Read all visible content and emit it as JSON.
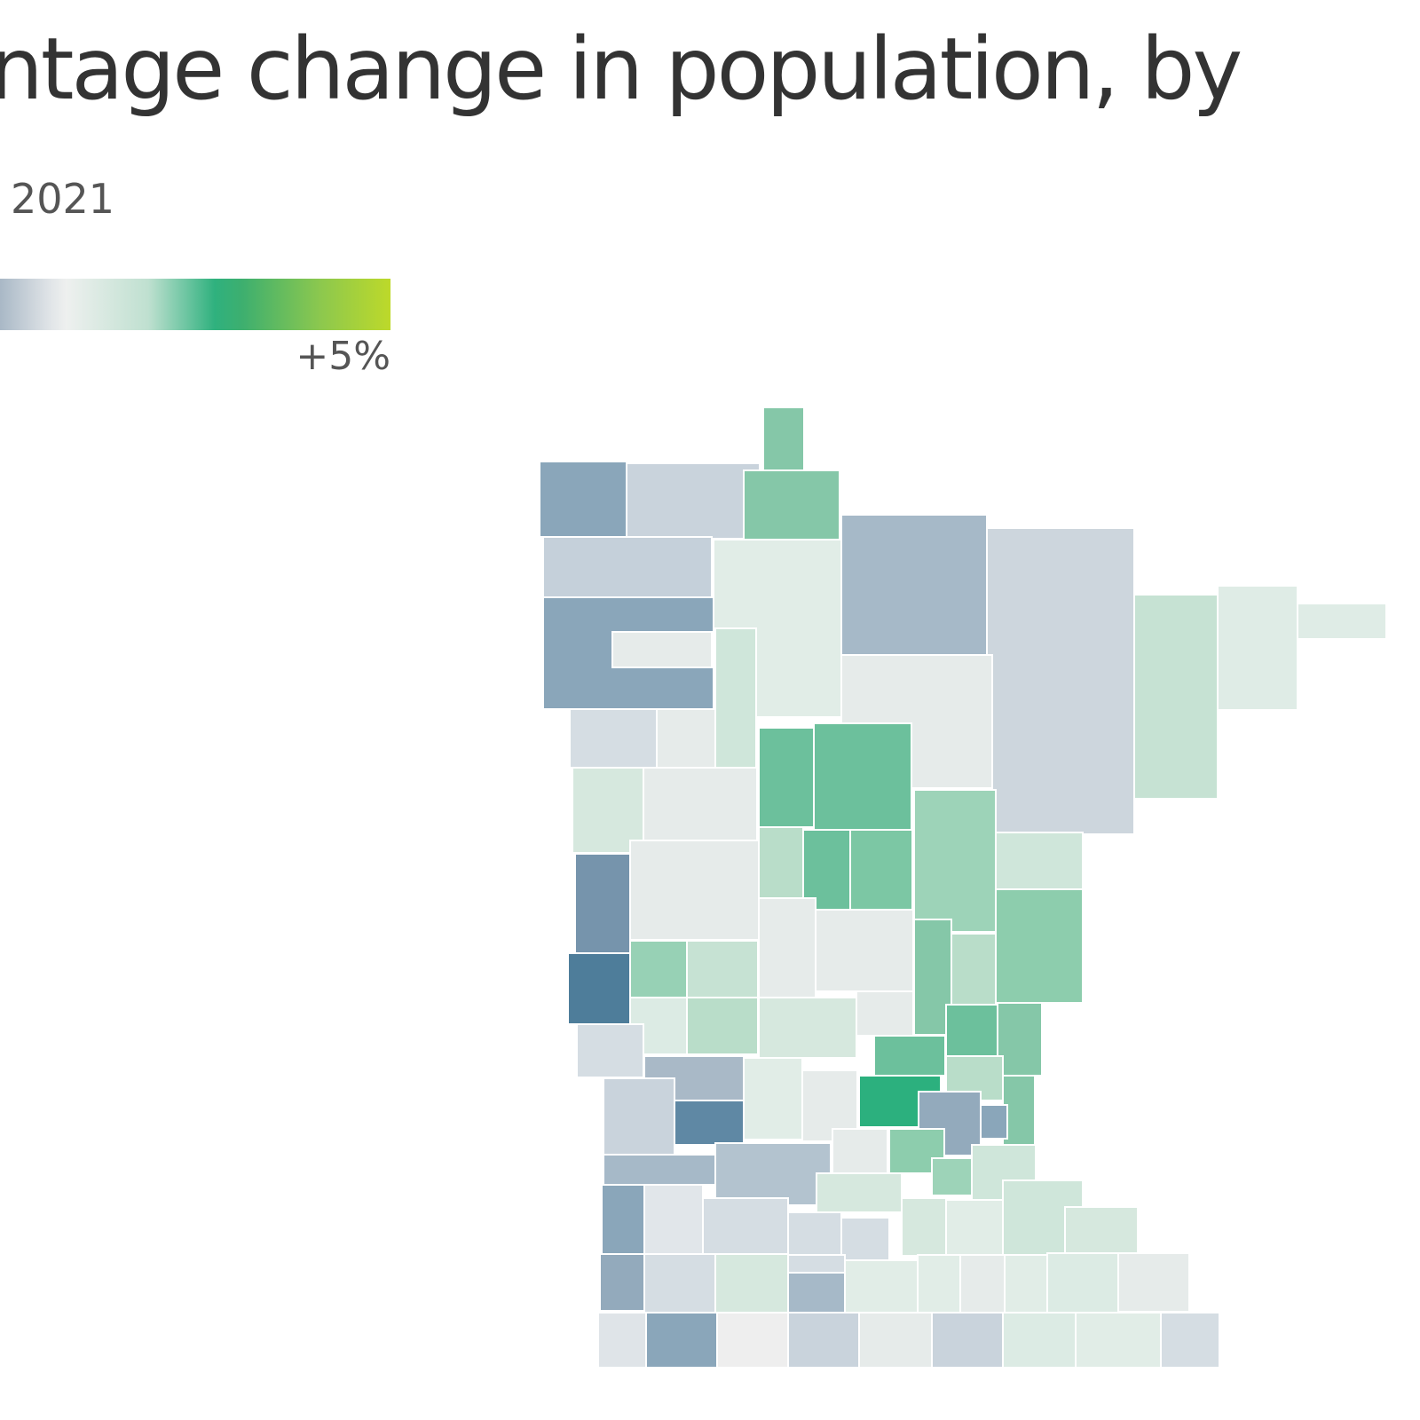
{
  "header": {
    "title": "ntage change in population, by",
    "subtitle": "2021"
  },
  "legend": {
    "max_label": "+5%",
    "color_stops": [
      "#a9b8c6",
      "#e1e5e8",
      "#eef0ef",
      "#bfe0d0",
      "#2fb17e",
      "#3daf6f",
      "#8cc84e",
      "#bdd92a"
    ]
  },
  "map": {
    "region": "Minnesota",
    "units": "counties",
    "fill_colors": {
      "strong_decline": "#4e7d9a",
      "decline": "#8aa6ba",
      "slight_decline": "#c9d3dc",
      "neutral": "#e6ebea",
      "slight_growth": "#cfe6da",
      "growth": "#9dd3b8",
      "strong_growth": "#6cc09c",
      "max_growth": "#2cb07e"
    }
  }
}
